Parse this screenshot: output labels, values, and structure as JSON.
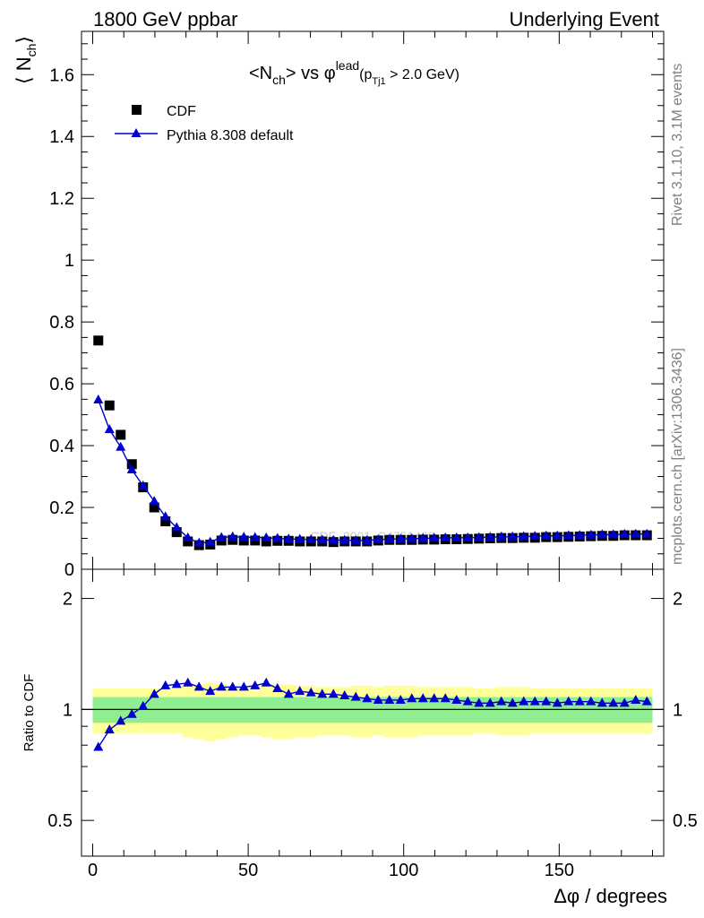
{
  "header": {
    "left": "1800 GeV ppbar",
    "right": "Underlying Event"
  },
  "side_text": {
    "rivet": "Rivet 3.1.10,  3.1M events",
    "mcplots": "mcplots.cern.ch [arXiv:1306.3436]"
  },
  "watermark": "CDF_2001_S4751469",
  "colors": {
    "data": "#000000",
    "mc": "#0000cc",
    "band_inner": "#90ee90",
    "band_outer": "#ffff99"
  },
  "chart_data": [
    {
      "type": "scatter",
      "title": {
        "pre": "<N",
        "sub1": "ch",
        "mid": "> vs φ",
        "sup": "lead",
        "paren_pre": "(p",
        "sub2": "Tj1",
        "paren_post": " > 2.0 GeV)"
      },
      "ylabel": {
        "open": "⟨ N",
        "sub": "ch",
        "close": "⟩"
      },
      "xlim": [
        -3.6,
        183.6
      ],
      "ylim": [
        0,
        1.74
      ],
      "yticks": [
        0,
        0.2,
        0.4,
        0.6,
        0.8,
        1,
        1.2,
        1.4,
        1.6
      ],
      "ytick_labels": [
        "0",
        "0.2",
        "0.4",
        "0.6",
        "0.8",
        "1",
        "1.2",
        "1.4",
        "1.6"
      ],
      "legend_position": "top-left",
      "series": [
        {
          "name": "CDF",
          "marker": "square",
          "x": [
            1.8,
            5.4,
            9.0,
            12.6,
            16.2,
            19.8,
            23.4,
            27.0,
            30.6,
            34.2,
            37.8,
            41.4,
            45.0,
            48.6,
            52.2,
            55.8,
            59.4,
            63.0,
            66.6,
            70.2,
            73.8,
            77.4,
            81.0,
            84.6,
            88.2,
            91.8,
            95.4,
            99.0,
            102.6,
            106.2,
            109.8,
            113.4,
            117.0,
            120.6,
            124.2,
            127.8,
            131.4,
            135.0,
            138.6,
            142.2,
            145.8,
            149.4,
            153.0,
            156.6,
            160.2,
            163.8,
            167.4,
            171.0,
            174.6,
            178.2
          ],
          "y": [
            0.74,
            0.53,
            0.435,
            0.34,
            0.265,
            0.2,
            0.155,
            0.12,
            0.09,
            0.078,
            0.08,
            0.093,
            0.095,
            0.093,
            0.093,
            0.09,
            0.092,
            0.092,
            0.09,
            0.09,
            0.09,
            0.088,
            0.09,
            0.09,
            0.09,
            0.093,
            0.095,
            0.095,
            0.095,
            0.096,
            0.096,
            0.097,
            0.097,
            0.098,
            0.099,
            0.1,
            0.101,
            0.101,
            0.102,
            0.102,
            0.104,
            0.104,
            0.105,
            0.106,
            0.107,
            0.108,
            0.108,
            0.11,
            0.11,
            0.11
          ]
        },
        {
          "name": "Pythia 8.308 default",
          "marker": "triangle",
          "x": [
            1.8,
            5.4,
            9.0,
            12.6,
            16.2,
            19.8,
            23.4,
            27.0,
            30.6,
            34.2,
            37.8,
            41.4,
            45.0,
            48.6,
            52.2,
            55.8,
            59.4,
            63.0,
            66.6,
            70.2,
            73.8,
            77.4,
            81.0,
            84.6,
            88.2,
            91.8,
            95.4,
            99.0,
            102.6,
            106.2,
            109.8,
            113.4,
            117.0,
            120.6,
            124.2,
            127.8,
            131.4,
            135.0,
            138.6,
            142.2,
            145.8,
            149.4,
            153.0,
            156.6,
            160.2,
            163.8,
            167.4,
            171.0,
            174.6,
            178.2
          ],
          "y": [
            0.548,
            0.452,
            0.395,
            0.322,
            0.27,
            0.22,
            0.17,
            0.135,
            0.102,
            0.085,
            0.088,
            0.103,
            0.105,
            0.104,
            0.103,
            0.102,
            0.1,
            0.098,
            0.097,
            0.096,
            0.095,
            0.094,
            0.094,
            0.093,
            0.093,
            0.096,
            0.098,
            0.098,
            0.099,
            0.1,
            0.101,
            0.102,
            0.102,
            0.102,
            0.103,
            0.104,
            0.105,
            0.105,
            0.106,
            0.107,
            0.108,
            0.108,
            0.109,
            0.11,
            0.111,
            0.112,
            0.112,
            0.113,
            0.114,
            0.114
          ]
        }
      ]
    },
    {
      "type": "scatter",
      "ylabel": "Ratio to CDF",
      "xlabel": "Δφ / degrees",
      "xlim": [
        -3.6,
        183.6
      ],
      "ylim": [
        0.4,
        2.4
      ],
      "log_y": true,
      "xticks": [
        0,
        50,
        100,
        150
      ],
      "xtick_labels": [
        "0",
        "50",
        "100",
        "150"
      ],
      "yticks": [
        0.5,
        1,
        2
      ],
      "ytick_labels": [
        "0.5",
        "1",
        "2"
      ],
      "reference_line": 1,
      "series": [
        {
          "name": "Pythia 8.308 default",
          "x": [
            1.8,
            5.4,
            9.0,
            12.6,
            16.2,
            19.8,
            23.4,
            27.0,
            30.6,
            34.2,
            37.8,
            41.4,
            45.0,
            48.6,
            52.2,
            55.8,
            59.4,
            63.0,
            66.6,
            70.2,
            73.8,
            77.4,
            81.0,
            84.6,
            88.2,
            91.8,
            95.4,
            99.0,
            102.6,
            106.2,
            109.8,
            113.4,
            117.0,
            120.6,
            124.2,
            127.8,
            131.4,
            135.0,
            138.6,
            142.2,
            145.8,
            149.4,
            153.0,
            156.6,
            160.2,
            163.8,
            167.4,
            171.0,
            174.6,
            178.2
          ],
          "y": [
            0.79,
            0.88,
            0.93,
            0.97,
            1.02,
            1.1,
            1.16,
            1.17,
            1.18,
            1.15,
            1.12,
            1.15,
            1.15,
            1.15,
            1.16,
            1.18,
            1.14,
            1.1,
            1.12,
            1.11,
            1.1,
            1.1,
            1.09,
            1.08,
            1.07,
            1.06,
            1.06,
            1.06,
            1.07,
            1.07,
            1.07,
            1.07,
            1.06,
            1.05,
            1.04,
            1.04,
            1.05,
            1.04,
            1.05,
            1.05,
            1.05,
            1.04,
            1.05,
            1.05,
            1.05,
            1.04,
            1.04,
            1.04,
            1.06,
            1.05
          ]
        }
      ],
      "band_inner": [
        0.08,
        0.08,
        0.08,
        0.08,
        0.08,
        0.08,
        0.08,
        0.08,
        0.08,
        0.08,
        0.08,
        0.08,
        0.08,
        0.08,
        0.08,
        0.08,
        0.08,
        0.08,
        0.08,
        0.08,
        0.08,
        0.08,
        0.08,
        0.08,
        0.08,
        0.08,
        0.08,
        0.08,
        0.08,
        0.08,
        0.08,
        0.08,
        0.08,
        0.08,
        0.08,
        0.08,
        0.08,
        0.08,
        0.08,
        0.08,
        0.08,
        0.08,
        0.08,
        0.08,
        0.08,
        0.08,
        0.08,
        0.08,
        0.08,
        0.08
      ],
      "band_outer": [
        0.14,
        0.14,
        0.14,
        0.14,
        0.14,
        0.14,
        0.14,
        0.14,
        0.16,
        0.17,
        0.18,
        0.17,
        0.16,
        0.15,
        0.15,
        0.16,
        0.17,
        0.17,
        0.16,
        0.16,
        0.15,
        0.15,
        0.15,
        0.16,
        0.16,
        0.15,
        0.16,
        0.16,
        0.16,
        0.15,
        0.15,
        0.15,
        0.15,
        0.15,
        0.14,
        0.14,
        0.15,
        0.15,
        0.15,
        0.14,
        0.14,
        0.14,
        0.14,
        0.14,
        0.14,
        0.14,
        0.14,
        0.14,
        0.14,
        0.14
      ]
    }
  ]
}
